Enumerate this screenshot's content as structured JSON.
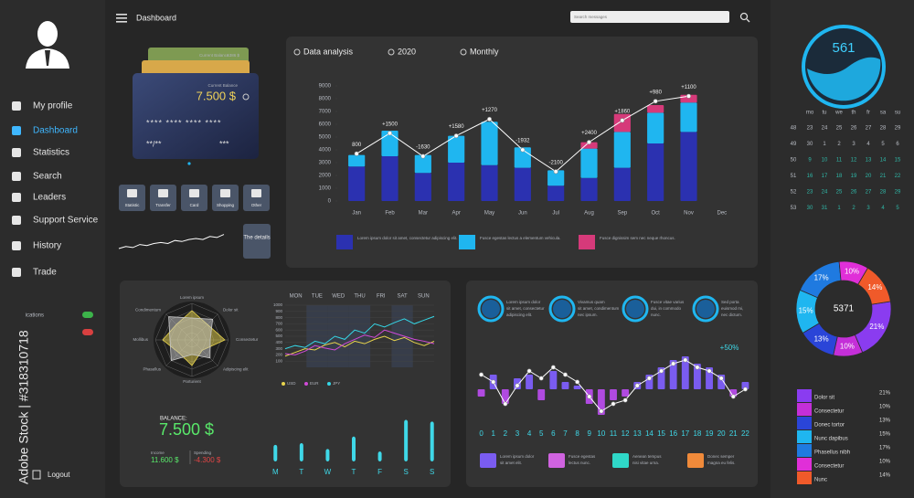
{
  "header": {
    "title": "Dashboard",
    "search_placeholder": "Search messages"
  },
  "sidebar": {
    "menu": [
      "My profile",
      "Dashboard",
      "Statistics",
      "Search",
      "Leaders",
      "Support Service",
      "History",
      "Trade"
    ],
    "active": 1,
    "toggle_label": "Notifications",
    "logout": "Logout"
  },
  "watermark": "Adobe Stock | #318310718",
  "card": {
    "back_label": "Current Balance",
    "back_amount": "1386 $",
    "balance_label": "Current Balance",
    "balance": "7.500 $",
    "number": "**** **** **** ****",
    "expiry": "**/**",
    "cvc": "***"
  },
  "buttons": [
    "Statistic",
    "Transfer",
    "Card",
    "Shopping",
    "Other"
  ],
  "details": "The details",
  "balance": {
    "label": "BALANCE:",
    "amount": "7.500 $",
    "income_label": "Income",
    "income": "11.600 $",
    "spending_label": "Spending",
    "spending": "-4.300 $"
  },
  "mini_stats": [
    {
      "lines": [
        "Lorem ipsum dolor",
        "sit amet, consectetur",
        "adipiscing elit."
      ]
    },
    {
      "lines": [
        "Vivamus quam",
        "sit amet, condimentum",
        "nec ipsum."
      ]
    },
    {
      "lines": [
        "Fusce vitae varius",
        "dui, in commodo",
        "nunc."
      ]
    },
    {
      "lines": [
        "Sed porta",
        "euismod mi,",
        "nec dictum."
      ]
    }
  ],
  "bottom_legend": [
    {
      "lines": [
        "Lorem ipsum dolor",
        "sit amet elit."
      ]
    },
    {
      "lines": [
        "Fusce egestas",
        "lectus nunc."
      ]
    },
    {
      "lines": [
        "Aenean tempus",
        "nisi vitae urna."
      ]
    },
    {
      "lines": [
        "Donec semper",
        "magna eu felis."
      ]
    }
  ],
  "calendar": {
    "days": [
      "mo",
      "tu",
      "we",
      "th",
      "fr",
      "sa",
      "su"
    ],
    "weeks": [
      {
        "number": 48,
        "days": [
          23,
          24,
          25,
          26,
          27,
          28,
          29
        ]
      },
      {
        "number": 49,
        "days": [
          30,
          1,
          2,
          3,
          4,
          5,
          6
        ]
      },
      {
        "number": 50,
        "days": [
          9,
          10,
          11,
          12,
          13,
          14,
          15
        ]
      },
      {
        "number": 51,
        "days": [
          16,
          17,
          18,
          19,
          20,
          21,
          22
        ]
      },
      {
        "number": 52,
        "days": [
          23,
          24,
          25,
          26,
          27,
          28,
          29
        ]
      },
      {
        "number": 53,
        "days": [
          30,
          31,
          1,
          2,
          3,
          4,
          5
        ]
      }
    ]
  },
  "chart_data": [
    {
      "type": "bar",
      "stacked": true,
      "grid": false,
      "filters": [
        "Data analysis",
        "2020",
        "Monthly"
      ],
      "categories": [
        "Jan",
        "Feb",
        "Mar",
        "Apr",
        "May",
        "Jun",
        "Jul",
        "Aug",
        "Sep",
        "Oct",
        "Nov",
        "Dec"
      ],
      "ylim": [
        0,
        9000
      ],
      "yticks": [
        0,
        1000,
        2000,
        3000,
        4000,
        5000,
        6000,
        7000,
        8000,
        9000
      ],
      "series": [
        {
          "name": "Lorem ipsum dolor sit amet, consectetur adipiscing elit.",
          "color": "#2b31b0",
          "values": [
            2700,
            3500,
            2200,
            3000,
            2800,
            2600,
            1200,
            1800,
            2600,
            4500,
            5400,
            null
          ]
        },
        {
          "name": "Fusce egestas lectus a elementum vehicula.",
          "color": "#1fb6f0",
          "values": [
            900,
            2000,
            1400,
            2100,
            3400,
            1600,
            1200,
            2300,
            2800,
            2400,
            2300,
            null
          ]
        },
        {
          "name": "Fusce dignissim sem nec neque rhoncus.",
          "color": "#d63a7a",
          "values": [
            0,
            0,
            0,
            0,
            0,
            0,
            0,
            500,
            1400,
            600,
            600,
            null
          ]
        }
      ],
      "line": {
        "color": "#ffffff",
        "values": [
          3700,
          5300,
          3500,
          5100,
          6400,
          4000,
          2300,
          4600,
          6300,
          7800,
          8200,
          null
        ],
        "point_labels": [
          "800",
          "+1500",
          "-1630",
          "+1580",
          "+1270",
          "-1932",
          "-2100",
          "+2400",
          "+1860",
          "+980",
          "+1100",
          null
        ]
      }
    },
    {
      "type": "radar",
      "categories": [
        "Lorem ipsum",
        "Dolor sit",
        "Consectetur",
        "Adipiscing elit",
        "Parturient",
        "Phasellus",
        "Mollibus",
        "Condimentum"
      ],
      "rlim": [
        0,
        5
      ],
      "series": [
        {
          "color": "#e8d44d",
          "values": [
            4,
            3,
            4.5,
            2,
            3.5,
            2.5,
            4,
            3
          ]
        },
        {
          "color": "#c9c9c9",
          "values": [
            3,
            4,
            2.5,
            3.5,
            2,
            4,
            3,
            4.5
          ]
        }
      ]
    },
    {
      "type": "line",
      "column_headers": [
        "MON",
        "TUE",
        "WED",
        "THU",
        "FRI",
        "SAT",
        "SUN"
      ],
      "x": [
        0,
        1,
        2,
        3,
        4,
        5,
        6,
        7,
        8,
        9,
        10,
        11,
        12,
        13,
        14,
        15
      ],
      "xlim": [
        0,
        15
      ],
      "ylim": [
        0,
        1000
      ],
      "yticks": [
        100,
        200,
        300,
        400,
        500,
        600,
        700,
        800,
        900,
        1000
      ],
      "series": [
        {
          "name": "USD",
          "color": "#e8d44d",
          "values": [
            180,
            240,
            300,
            280,
            360,
            400,
            330,
            420,
            380,
            450,
            500,
            430,
            480,
            400,
            350,
            420
          ]
        },
        {
          "name": "EUR",
          "color": "#d04ad8",
          "values": [
            220,
            200,
            260,
            350,
            310,
            280,
            380,
            450,
            520,
            480,
            600,
            550,
            500,
            450,
            420,
            380
          ]
        },
        {
          "name": "JPY",
          "color": "#35d6e6",
          "values": [
            300,
            350,
            320,
            420,
            380,
            500,
            450,
            600,
            550,
            700,
            650,
            720,
            780,
            700,
            760,
            820
          ]
        }
      ]
    },
    {
      "type": "bar",
      "categories": [
        "M",
        "T",
        "W",
        "T",
        "F",
        "S",
        "S"
      ],
      "values": [
        20,
        22,
        15,
        30,
        12,
        50,
        48
      ],
      "ylim": [
        0,
        55
      ],
      "color": "#3fd8e8"
    },
    {
      "type": "bar",
      "categories": [
        0,
        1,
        2,
        3,
        4,
        5,
        6,
        7,
        8,
        9,
        10,
        11,
        12,
        13,
        14,
        15,
        16,
        17,
        18,
        19,
        20,
        21,
        22
      ],
      "values": [
        -1,
        2,
        -2,
        1.5,
        2,
        -1.5,
        2.5,
        1,
        0.5,
        -2,
        -3.5,
        -1.5,
        -1,
        1,
        2,
        3,
        4,
        4.5,
        3.5,
        3,
        2,
        -1,
        1
      ],
      "ylim": [
        -4,
        6
      ],
      "color": "#7a5cf0",
      "negative_color": "#b04ae0",
      "annotation": "+50%",
      "line": {
        "color": "#ffffff",
        "values": [
          2,
          1,
          -2,
          0.5,
          2.5,
          1.5,
          3,
          2,
          1,
          -1,
          -3,
          -2,
          -1.5,
          0.5,
          1.5,
          2.5,
          3.5,
          4,
          3,
          2.5,
          1.5,
          -1,
          0
        ]
      }
    },
    {
      "type": "line",
      "x": [
        0,
        1,
        2,
        3,
        4,
        5,
        6,
        7,
        8,
        9,
        10,
        11,
        12,
        13,
        14,
        15
      ],
      "xlim": [
        0,
        15
      ],
      "ylim": [
        0,
        30
      ],
      "series": [
        {
          "color": "#ffffff",
          "values": [
            10,
            12,
            11,
            14,
            13,
            15,
            16,
            15,
            18,
            17,
            19,
            20,
            19,
            22,
            21,
            24
          ]
        }
      ]
    },
    {
      "type": "pie",
      "center_label": 5371,
      "categories": [
        "Dolor sit",
        "Consectetur",
        "Donec tortor",
        "Nunc dapibus",
        "Phasellus nibh",
        "Consectetur",
        "Nunc"
      ],
      "values": [
        21,
        10,
        13,
        15,
        17,
        10,
        14
      ],
      "value_labels": [
        "21%",
        "10%",
        "13%",
        "15%",
        "17%",
        "10%",
        "14%"
      ],
      "colors": [
        "#8a3cf0",
        "#c42fd8",
        "#2a45d8",
        "#1fb6f0",
        "#1f7ae0",
        "#e02fd8",
        "#f05a2a"
      ]
    },
    {
      "type": "gauge",
      "value": 561,
      "color": "#1fb6f0"
    }
  ]
}
